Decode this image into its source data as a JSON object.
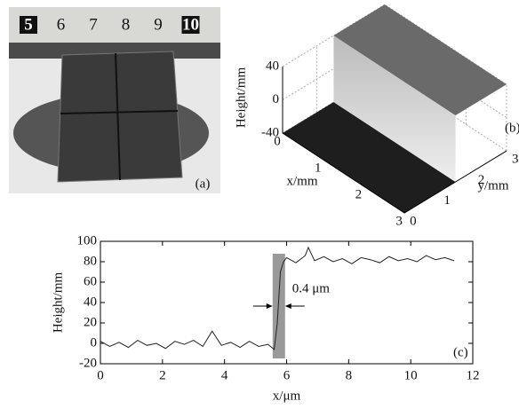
{
  "photo": {
    "ruler_labels": [
      "5",
      "6",
      "7",
      "8",
      "9",
      "10"
    ],
    "label": "(a)"
  },
  "chart_data": [
    {
      "type": "surface",
      "label": "(b)",
      "zlabel": "Height/mm",
      "xlabel": "x/mm",
      "ylabel": "y/mm",
      "xlim": [
        0,
        3
      ],
      "ylim": [
        0,
        3
      ],
      "zlim": [
        -40,
        40
      ],
      "xticks": [
        0,
        1,
        2,
        3
      ],
      "yticks": [
        0,
        1,
        2,
        3
      ],
      "zticks": [
        -40,
        0,
        40
      ],
      "levels": [
        -40,
        40
      ],
      "step_y": 1.5
    },
    {
      "type": "line",
      "label": "(c)",
      "xlabel": "x/μm",
      "ylabel": "Height/mm",
      "annotation": "0.4 μm",
      "xlim": [
        0,
        12
      ],
      "ylim": [
        -20,
        100
      ],
      "xticks": [
        0,
        2,
        4,
        6,
        8,
        10,
        12
      ],
      "yticks": [
        -20,
        0,
        20,
        40,
        60,
        80,
        100
      ],
      "band": [
        5.55,
        5.95
      ],
      "color": "#222222",
      "x": [
        0,
        0.3,
        0.6,
        0.9,
        1.2,
        1.5,
        1.8,
        2.1,
        2.4,
        2.7,
        3.0,
        3.3,
        3.6,
        3.9,
        4.2,
        4.5,
        4.8,
        5.1,
        5.4,
        5.6,
        5.7,
        5.8,
        5.9,
        6.0,
        6.3,
        6.6,
        6.7,
        6.9,
        7.2,
        7.5,
        7.8,
        8.1,
        8.4,
        8.7,
        9.0,
        9.3,
        9.6,
        9.9,
        10.2,
        10.5,
        10.8,
        11.1,
        11.4
      ],
      "values": [
        2,
        -3,
        1,
        -4,
        3,
        -2,
        0,
        -5,
        2,
        -1,
        3,
        -3,
        12,
        -2,
        1,
        -4,
        2,
        -3,
        -1,
        -6,
        20,
        70,
        80,
        84,
        79,
        86,
        94,
        81,
        85,
        80,
        83,
        78,
        84,
        82,
        79,
        85,
        81,
        83,
        80,
        86,
        82,
        84,
        81
      ]
    }
  ]
}
